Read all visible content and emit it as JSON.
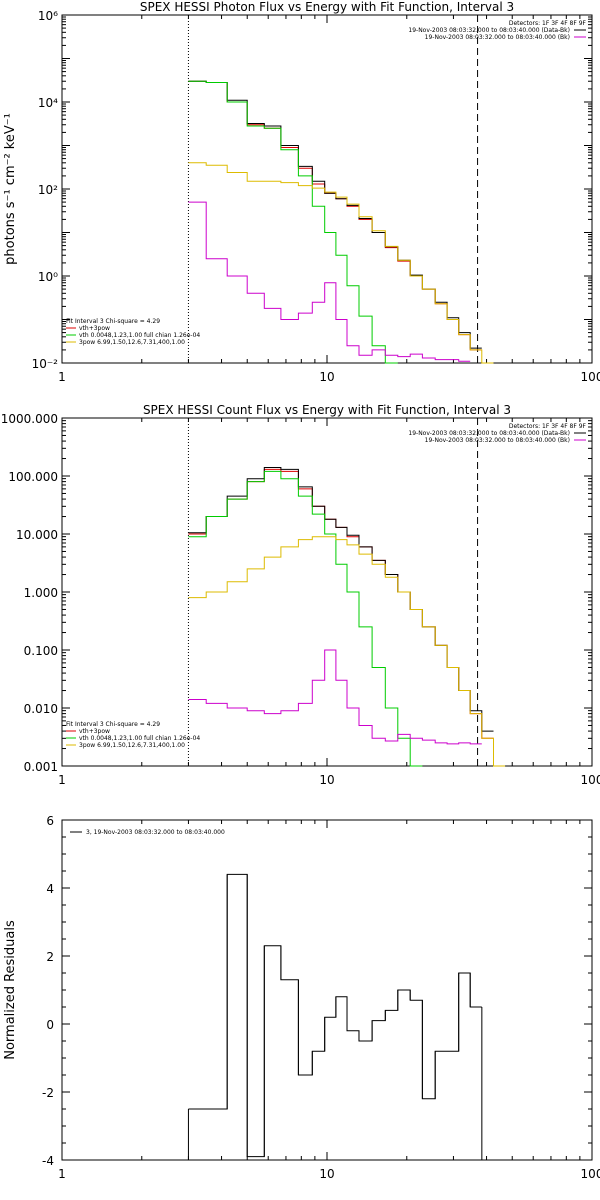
{
  "chart_data": [
    {
      "type": "line",
      "title": "SPEX HESSI Photon Flux vs Energy with Fit Function, Interval 3",
      "xlabel": "",
      "ylabel": "photons s⁻¹ cm⁻² keV⁻¹",
      "xscale": "log",
      "yscale": "log",
      "xlim": [
        1,
        100
      ],
      "ylim": [
        0.01,
        1000000
      ],
      "x_tick_labels": [
        "1",
        "10",
        "100"
      ],
      "y_tick_labels": [
        "10⁻²",
        "10⁰",
        "10²",
        "10⁴",
        "10⁶"
      ],
      "vlines": [
        {
          "x": 3,
          "style": "dotted"
        },
        {
          "x": 37,
          "style": "dashed"
        }
      ],
      "info_top": [
        "Detectors: 1F 3F 4F 8F 9F"
      ],
      "legend_top": [
        {
          "label": "19-Nov-2003 08:03:32.000 to 08:03:40.000 (Data-Bk)",
          "color": "#000000"
        },
        {
          "label": "19-Nov-2003 08:03:32.000 to 08:03:40.000 (Bk)",
          "color": "#cc00cc"
        }
      ],
      "legend_bottom": [
        {
          "label": "Fit Interval 3   Chi-square = 4.29",
          "color": null
        },
        {
          "label": "vth+3pow",
          "color": "#dd0000"
        },
        {
          "label": "vth 0.0048,1.23,1.00  full chian 1.26e-04",
          "color": "#00cc00"
        },
        {
          "label": "3pow 6.99,1.50,12.6,7.31,400,1.00",
          "color": "#ddbb00"
        }
      ],
      "bin_edges": [
        3,
        3.5,
        4.2,
        5,
        5.8,
        6.7,
        7.8,
        8.8,
        9.8,
        10.8,
        11.9,
        13.2,
        14.8,
        16.6,
        18.5,
        20.6,
        22.9,
        25.6,
        28.4,
        31.4,
        34.7,
        38.4,
        42.5
      ],
      "series": [
        {
          "name": "vth+3pow",
          "color": "#dd0000",
          "values": [
            30000,
            28000,
            10000,
            3000,
            2500,
            900,
            300,
            130,
            80,
            60,
            40,
            20,
            10,
            4.5,
            2.2,
            1.0,
            0.5,
            0.23,
            0.1,
            0.045,
            0.02,
            null
          ]
        },
        {
          "name": "Data-Bk",
          "color": "#000000",
          "values": [
            30000,
            28000,
            11000,
            3200,
            2800,
            1000,
            330,
            150,
            80,
            60,
            42,
            21,
            10,
            4.7,
            2.3,
            1.05,
            0.5,
            0.25,
            0.11,
            0.05,
            0.022,
            null
          ]
        },
        {
          "name": "vth",
          "color": "#00cc00",
          "values": [
            30000,
            28000,
            10000,
            2800,
            2500,
            800,
            200,
            40,
            10,
            3,
            0.6,
            0.12,
            0.025,
            0.008,
            null,
            null,
            null,
            null,
            null,
            null,
            null,
            null
          ]
        },
        {
          "name": "3pow",
          "color": "#ddbb00",
          "values": [
            400,
            350,
            240,
            150,
            150,
            140,
            120,
            105,
            85,
            65,
            45,
            23,
            11,
            4.8,
            2.3,
            1.0,
            0.5,
            0.23,
            0.1,
            0.045,
            0.02,
            0.01
          ]
        },
        {
          "name": "Bk",
          "color": "#cc00cc",
          "values": [
            50,
            2.5,
            1.0,
            0.4,
            0.18,
            0.1,
            0.14,
            0.25,
            0.7,
            0.1,
            0.025,
            0.015,
            0.02,
            0.015,
            0.014,
            0.016,
            0.013,
            0.012,
            0.012,
            0.011,
            null,
            null
          ]
        }
      ]
    },
    {
      "type": "line",
      "title": "SPEX HESSI Count Flux vs Energy with Fit Function, Interval 3",
      "xlabel": "",
      "ylabel": "",
      "xscale": "log",
      "yscale": "log",
      "xlim": [
        1,
        100
      ],
      "ylim": [
        0.001,
        1000
      ],
      "x_tick_labels": [
        "1",
        "10",
        "100"
      ],
      "y_tick_labels": [
        "0.001",
        "0.010",
        "0.100",
        "1.000",
        "10.000",
        "100.000",
        "1000.000"
      ],
      "vlines": [
        {
          "x": 3,
          "style": "dotted"
        },
        {
          "x": 37,
          "style": "dashed"
        }
      ],
      "info_top": [
        "Detectors: 1F 3F 4F 8F 9F"
      ],
      "legend_top": [
        {
          "label": "19-Nov-2003 08:03:32.000 to 08:03:40.000 (Data-Bk)",
          "color": "#000000"
        },
        {
          "label": "19-Nov-2003 08:03:32.000 to 08:03:40.000 (Bk)",
          "color": "#cc00cc"
        }
      ],
      "legend_bottom": [
        {
          "label": "Fit Interval 3   Chi-square = 4.29",
          "color": null
        },
        {
          "label": "vth+3pow",
          "color": "#dd0000"
        },
        {
          "label": "vth 0.0048,1.23,1.00  full chian 1.26e-04",
          "color": "#00cc00"
        },
        {
          "label": "3pow 6.99,1.50,12.6,7.31,400,1.00",
          "color": "#ddbb00"
        }
      ],
      "bin_edges": [
        3,
        3.5,
        4.2,
        5,
        5.8,
        6.7,
        7.8,
        8.8,
        9.8,
        10.8,
        11.9,
        13.2,
        14.8,
        16.6,
        18.5,
        20.6,
        22.9,
        25.6,
        28.4,
        31.4,
        34.7,
        38.4,
        42.5,
        47
      ],
      "series": [
        {
          "name": "vth+3pow",
          "color": "#dd0000",
          "values": [
            10,
            20,
            40,
            80,
            130,
            120,
            60,
            30,
            18,
            13,
            9,
            6,
            3.5,
            2,
            1,
            0.5,
            0.25,
            0.12,
            0.05,
            0.02,
            0.008,
            0.003,
            null
          ]
        },
        {
          "name": "Data-Bk",
          "color": "#000000",
          "values": [
            10.5,
            20,
            45,
            90,
            140,
            130,
            65,
            30,
            18,
            13,
            9.5,
            6,
            3.5,
            2,
            1,
            0.5,
            0.25,
            0.12,
            0.05,
            0.02,
            0.009,
            0.004,
            null
          ]
        },
        {
          "name": "vth",
          "color": "#00cc00",
          "values": [
            9,
            20,
            40,
            80,
            120,
            90,
            45,
            22,
            10,
            3,
            1,
            0.25,
            0.05,
            0.01,
            0.003,
            0.001,
            null,
            null,
            null,
            null,
            null,
            null,
            null
          ]
        },
        {
          "name": "3pow",
          "color": "#ddbb00",
          "values": [
            0.8,
            1.0,
            1.5,
            2.5,
            4,
            6,
            8,
            9,
            9,
            8,
            6.5,
            4.5,
            3,
            1.8,
            1.0,
            0.5,
            0.25,
            0.12,
            0.05,
            0.02,
            0.008,
            0.003,
            0.001
          ]
        },
        {
          "name": "Bk",
          "color": "#cc00cc",
          "values": [
            0.014,
            0.012,
            0.01,
            0.009,
            0.008,
            0.009,
            0.012,
            0.03,
            0.1,
            0.03,
            0.01,
            0.005,
            0.003,
            0.0027,
            0.0035,
            0.003,
            0.0028,
            0.0025,
            0.0024,
            0.0025,
            0.0024,
            null,
            null
          ]
        }
      ]
    },
    {
      "type": "line",
      "title": "",
      "xlabel": "",
      "ylabel": "Normalized Residuals",
      "xscale": "log",
      "yscale": "linear",
      "xlim": [
        1,
        100
      ],
      "ylim": [
        -4,
        6
      ],
      "x_tick_labels": [
        "1",
        "10",
        "100"
      ],
      "y_tick_labels": [
        "-4",
        "-2",
        "0",
        "2",
        "4",
        "6"
      ],
      "legend_top": [
        {
          "label": "3, 19-Nov-2003 08:03:32.000 to 08:03:40.000",
          "color": "#000000"
        }
      ],
      "bin_edges": [
        3,
        3.5,
        4.2,
        5,
        5.8,
        6.7,
        7.8,
        8.8,
        9.8,
        10.8,
        11.9,
        13.2,
        14.8,
        16.6,
        18.5,
        20.6,
        22.9,
        25.6,
        28.4,
        31.4,
        34.7,
        38.4
      ],
      "series": [
        {
          "name": "3, 19-Nov-2003 08:03:32.000 to 08:03:40.000",
          "color": "#000000",
          "values": [
            -2.5,
            -2.5,
            4.4,
            -3.9,
            2.3,
            1.3,
            -1.5,
            -0.8,
            0.2,
            0.8,
            -0.2,
            -0.5,
            0.1,
            0.4,
            1.0,
            0.7,
            -2.2,
            -0.8,
            -0.8,
            1.5,
            0.5
          ]
        }
      ]
    }
  ]
}
